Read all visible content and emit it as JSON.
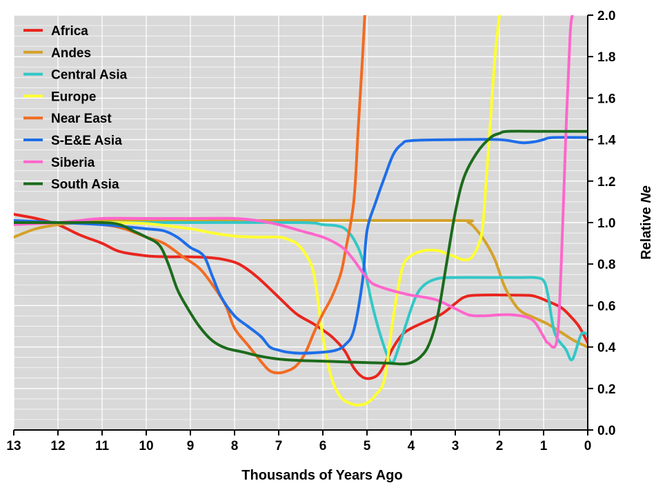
{
  "chart_data": {
    "type": "line",
    "xlabel": "Thousands of Years Ago",
    "ylabel_prefix": "Relative ",
    "ylabel_emph": "Ne",
    "xlim": [
      13,
      0
    ],
    "ylim": [
      0,
      2.0
    ],
    "x_ticks": [
      13,
      12,
      11,
      10,
      9,
      8,
      7,
      6,
      5,
      4,
      3,
      2,
      1,
      0
    ],
    "x_tick_labels": [
      "13",
      "12",
      "11",
      "10",
      "9",
      "8",
      "7",
      "6",
      "5",
      "4",
      "3",
      "2",
      "1",
      "0"
    ],
    "y_ticks": [
      0,
      0.2,
      0.4,
      0.6,
      0.8,
      1.0,
      1.2,
      1.4,
      1.6,
      1.8,
      2.0
    ],
    "y_tick_labels": [
      "0.0",
      "0.2",
      "0.4",
      "0.6",
      "0.8",
      "1.0",
      "1.2",
      "1.4",
      "1.6",
      "1.8",
      "2.0"
    ],
    "grid": true,
    "background": "#d9d9d9",
    "legend_position": "top-left",
    "series": [
      {
        "name": "Africa",
        "color": "#e8261e",
        "points": [
          [
            13,
            1.04
          ],
          [
            12.5,
            1.02
          ],
          [
            12,
            0.99
          ],
          [
            11.5,
            0.94
          ],
          [
            11,
            0.9
          ],
          [
            10.6,
            0.86
          ],
          [
            10,
            0.84
          ],
          [
            9.5,
            0.835
          ],
          [
            9,
            0.835
          ],
          [
            8.5,
            0.83
          ],
          [
            8.2,
            0.82
          ],
          [
            7.9,
            0.8
          ],
          [
            7.5,
            0.74
          ],
          [
            7,
            0.64
          ],
          [
            6.6,
            0.56
          ],
          [
            6.2,
            0.51
          ],
          [
            5.8,
            0.45
          ],
          [
            5.5,
            0.38
          ],
          [
            5.3,
            0.3
          ],
          [
            5.1,
            0.255
          ],
          [
            4.9,
            0.25
          ],
          [
            4.7,
            0.28
          ],
          [
            4.4,
            0.4
          ],
          [
            4.2,
            0.46
          ],
          [
            4,
            0.49
          ],
          [
            3.7,
            0.52
          ],
          [
            3.3,
            0.56
          ],
          [
            3,
            0.61
          ],
          [
            2.8,
            0.64
          ],
          [
            2.5,
            0.65
          ],
          [
            1.5,
            0.65
          ],
          [
            1.2,
            0.645
          ],
          [
            0.9,
            0.62
          ],
          [
            0.6,
            0.59
          ],
          [
            0.4,
            0.55
          ],
          [
            0.2,
            0.5
          ],
          [
            0,
            0.42
          ]
        ]
      },
      {
        "name": "Andes",
        "color": "#d4a12a",
        "points": [
          [
            13,
            0.93
          ],
          [
            12.5,
            0.97
          ],
          [
            12,
            0.99
          ],
          [
            11.5,
            1.0
          ],
          [
            11,
            1.01
          ],
          [
            7,
            1.01
          ],
          [
            3,
            1.01
          ],
          [
            2.7,
            1.0
          ],
          [
            2.5,
            0.96
          ],
          [
            2.3,
            0.9
          ],
          [
            2.1,
            0.82
          ],
          [
            1.9,
            0.7
          ],
          [
            1.7,
            0.62
          ],
          [
            1.5,
            0.57
          ],
          [
            1.2,
            0.54
          ],
          [
            0.9,
            0.51
          ],
          [
            0.6,
            0.47
          ],
          [
            0.3,
            0.43
          ],
          [
            0,
            0.4
          ]
        ]
      },
      {
        "name": "Central Asia",
        "color": "#33c7c7",
        "points": [
          [
            13,
            1.01
          ],
          [
            12,
            1.0
          ],
          [
            11,
            1.0
          ],
          [
            9,
            1.0
          ],
          [
            6.5,
            1.0
          ],
          [
            6,
            0.99
          ],
          [
            5.7,
            0.985
          ],
          [
            5.5,
            0.97
          ],
          [
            5.3,
            0.92
          ],
          [
            5.1,
            0.82
          ],
          [
            4.9,
            0.62
          ],
          [
            4.7,
            0.46
          ],
          [
            4.5,
            0.34
          ],
          [
            4.4,
            0.33
          ],
          [
            4.25,
            0.42
          ],
          [
            4.1,
            0.52
          ],
          [
            3.9,
            0.64
          ],
          [
            3.7,
            0.7
          ],
          [
            3.4,
            0.73
          ],
          [
            3,
            0.735
          ],
          [
            2,
            0.735
          ],
          [
            1.5,
            0.735
          ],
          [
            1.2,
            0.735
          ],
          [
            1,
            0.72
          ],
          [
            0.9,
            0.65
          ],
          [
            0.75,
            0.47
          ],
          [
            0.5,
            0.39
          ],
          [
            0.35,
            0.34
          ],
          [
            0.15,
            0.46
          ],
          [
            0,
            0.46
          ]
        ]
      },
      {
        "name": "Europe",
        "color": "#ffff33",
        "points": [
          [
            13,
            1.0
          ],
          [
            12,
            1.0
          ],
          [
            11,
            1.0
          ],
          [
            10,
            0.995
          ],
          [
            9,
            0.97
          ],
          [
            8.5,
            0.95
          ],
          [
            8,
            0.935
          ],
          [
            7.5,
            0.93
          ],
          [
            7,
            0.93
          ],
          [
            6.8,
            0.92
          ],
          [
            6.6,
            0.9
          ],
          [
            6.4,
            0.85
          ],
          [
            6.2,
            0.75
          ],
          [
            6,
            0.45
          ],
          [
            5.8,
            0.25
          ],
          [
            5.6,
            0.16
          ],
          [
            5.4,
            0.13
          ],
          [
            5.2,
            0.12
          ],
          [
            5,
            0.13
          ],
          [
            4.8,
            0.17
          ],
          [
            4.6,
            0.25
          ],
          [
            4.4,
            0.55
          ],
          [
            4.2,
            0.78
          ],
          [
            4,
            0.84
          ],
          [
            3.7,
            0.865
          ],
          [
            3.4,
            0.865
          ],
          [
            3.2,
            0.85
          ],
          [
            3,
            0.835
          ],
          [
            2.8,
            0.82
          ],
          [
            2.6,
            0.84
          ],
          [
            2.4,
            0.95
          ],
          [
            2.3,
            1.2
          ],
          [
            2.2,
            1.5
          ],
          [
            2.1,
            1.8
          ],
          [
            2,
            2.0
          ]
        ]
      },
      {
        "name": "Near East",
        "color": "#f26b22",
        "points": [
          [
            13,
            1.0
          ],
          [
            12,
            1.0
          ],
          [
            11,
            0.99
          ],
          [
            10.5,
            0.97
          ],
          [
            10,
            0.93
          ],
          [
            9.6,
            0.9
          ],
          [
            9.2,
            0.84
          ],
          [
            8.8,
            0.78
          ],
          [
            8.5,
            0.7
          ],
          [
            8.2,
            0.6
          ],
          [
            8,
            0.49
          ],
          [
            7.7,
            0.41
          ],
          [
            7.4,
            0.33
          ],
          [
            7.2,
            0.285
          ],
          [
            7,
            0.275
          ],
          [
            6.8,
            0.285
          ],
          [
            6.6,
            0.31
          ],
          [
            6.4,
            0.37
          ],
          [
            6.2,
            0.47
          ],
          [
            6,
            0.56
          ],
          [
            5.8,
            0.64
          ],
          [
            5.6,
            0.75
          ],
          [
            5.5,
            0.85
          ],
          [
            5.3,
            1.1
          ],
          [
            5.2,
            1.45
          ],
          [
            5.1,
            1.8
          ],
          [
            5.05,
            2.0
          ]
        ]
      },
      {
        "name": "S-E&E Asia",
        "color": "#1e6ee8",
        "points": [
          [
            13,
            1.01
          ],
          [
            12,
            1.0
          ],
          [
            11,
            0.99
          ],
          [
            10,
            0.97
          ],
          [
            9.6,
            0.96
          ],
          [
            9.3,
            0.93
          ],
          [
            9,
            0.88
          ],
          [
            8.7,
            0.84
          ],
          [
            8.5,
            0.74
          ],
          [
            8.3,
            0.64
          ],
          [
            8,
            0.55
          ],
          [
            7.7,
            0.5
          ],
          [
            7.4,
            0.45
          ],
          [
            7.2,
            0.4
          ],
          [
            7,
            0.385
          ],
          [
            6.8,
            0.375
          ],
          [
            6.5,
            0.37
          ],
          [
            6,
            0.375
          ],
          [
            5.7,
            0.385
          ],
          [
            5.5,
            0.41
          ],
          [
            5.3,
            0.48
          ],
          [
            5.1,
            0.72
          ],
          [
            5,
            0.96
          ],
          [
            4.8,
            1.1
          ],
          [
            4.6,
            1.22
          ],
          [
            4.4,
            1.33
          ],
          [
            4.2,
            1.38
          ],
          [
            4,
            1.395
          ],
          [
            3,
            1.4
          ],
          [
            2,
            1.4
          ],
          [
            1.5,
            1.385
          ],
          [
            1.2,
            1.39
          ],
          [
            1,
            1.4
          ],
          [
            0.8,
            1.41
          ],
          [
            0,
            1.41
          ]
        ]
      },
      {
        "name": "Siberia",
        "color": "#ff66cc",
        "points": [
          [
            13,
            0.99
          ],
          [
            12,
            1.0
          ],
          [
            11.5,
            1.01
          ],
          [
            11,
            1.02
          ],
          [
            10,
            1.02
          ],
          [
            9,
            1.02
          ],
          [
            8,
            1.02
          ],
          [
            7.5,
            1.01
          ],
          [
            7,
            0.99
          ],
          [
            6.5,
            0.96
          ],
          [
            6,
            0.93
          ],
          [
            5.7,
            0.9
          ],
          [
            5.5,
            0.87
          ],
          [
            5.3,
            0.82
          ],
          [
            5.1,
            0.76
          ],
          [
            4.9,
            0.71
          ],
          [
            4.7,
            0.69
          ],
          [
            4.4,
            0.67
          ],
          [
            4,
            0.65
          ],
          [
            3.7,
            0.64
          ],
          [
            3.4,
            0.625
          ],
          [
            3,
            0.585
          ],
          [
            2.7,
            0.555
          ],
          [
            2.4,
            0.55
          ],
          [
            2,
            0.555
          ],
          [
            1.7,
            0.555
          ],
          [
            1.4,
            0.545
          ],
          [
            1.2,
            0.52
          ],
          [
            1,
            0.45
          ],
          [
            0.9,
            0.42
          ],
          [
            0.7,
            0.43
          ],
          [
            0.6,
            0.8
          ],
          [
            0.5,
            1.4
          ],
          [
            0.4,
            1.9
          ],
          [
            0.35,
            2.0
          ]
        ]
      },
      {
        "name": "South Asia",
        "color": "#1c6b1c",
        "points": [
          [
            13,
            1.0
          ],
          [
            12,
            1.0
          ],
          [
            11,
            1.0
          ],
          [
            10.6,
            0.99
          ],
          [
            10.3,
            0.96
          ],
          [
            10,
            0.93
          ],
          [
            9.7,
            0.89
          ],
          [
            9.5,
            0.8
          ],
          [
            9.3,
            0.68
          ],
          [
            9.1,
            0.6
          ],
          [
            8.8,
            0.5
          ],
          [
            8.5,
            0.43
          ],
          [
            8.2,
            0.395
          ],
          [
            7.8,
            0.375
          ],
          [
            7.4,
            0.355
          ],
          [
            7,
            0.342
          ],
          [
            6.5,
            0.335
          ],
          [
            6,
            0.332
          ],
          [
            5.5,
            0.328
          ],
          [
            5,
            0.325
          ],
          [
            4.5,
            0.322
          ],
          [
            4.2,
            0.318
          ],
          [
            4,
            0.325
          ],
          [
            3.8,
            0.35
          ],
          [
            3.6,
            0.41
          ],
          [
            3.4,
            0.55
          ],
          [
            3.2,
            0.8
          ],
          [
            3,
            1.05
          ],
          [
            2.8,
            1.22
          ],
          [
            2.5,
            1.34
          ],
          [
            2.2,
            1.41
          ],
          [
            2,
            1.43
          ],
          [
            1.8,
            1.44
          ],
          [
            1,
            1.44
          ],
          [
            0,
            1.44
          ]
        ]
      }
    ]
  }
}
